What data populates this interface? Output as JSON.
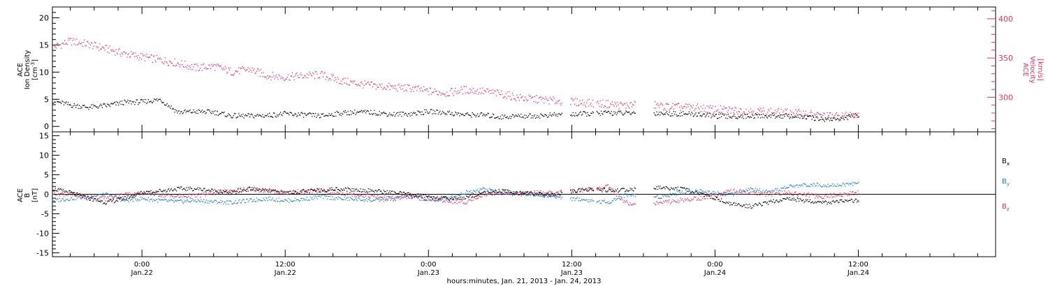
{
  "colors": {
    "black": "#000000",
    "pink": "#e8305e",
    "blue": "#1e7fd6"
  },
  "chart_data": [
    {
      "type": "scatter",
      "panel": "top",
      "ylabel_lines": [
        "ACE",
        "Ion Density",
        "[cm^-3]"
      ],
      "y2label_lines": [
        "ACE",
        "Velocity",
        "[km/s]"
      ],
      "ylim": [
        -1,
        22
      ],
      "y2lim": [
        256,
        415
      ],
      "yticks": [
        0,
        5,
        10,
        15,
        20
      ],
      "yticklabels": [
        "0",
        "5",
        "10",
        "15",
        "20"
      ],
      "y2ticks": [
        300,
        350,
        400
      ],
      "y2ticklabels": [
        "300",
        "350",
        "400"
      ],
      "x_unit": "hours since Jan. 21, 2013 00:00",
      "series": [
        {
          "axis": "left",
          "color": "#000000",
          "x": [
            16.5,
            18,
            19.5,
            21,
            22.5,
            24,
            25.5,
            27,
            28.5,
            30,
            31.5,
            33,
            34.5,
            36,
            37.5,
            39,
            40.5,
            42,
            43.5,
            45,
            46.5,
            48,
            49.5,
            51,
            52.5,
            54,
            55.5,
            57,
            58.5,
            61.5,
            63,
            64.5,
            66,
            67.5,
            69,
            70.5,
            72,
            73.5,
            75,
            76.5,
            78,
            79.5,
            81,
            82.5,
            84
          ],
          "values": [
            4.8,
            4.0,
            3.6,
            3.9,
            4.5,
            4.6,
            5.0,
            2.7,
            2.8,
            2.7,
            2.0,
            2.0,
            2.1,
            2.4,
            2.2,
            2.0,
            2.5,
            2.7,
            2.6,
            2.3,
            2.4,
            2.8,
            2.6,
            2.2,
            2.2,
            1.8,
            2.0,
            2.0,
            2.2,
            2.4,
            2.6,
            2.5,
            2.6,
            2.5,
            2.4,
            2.3,
            2.0,
            1.9,
            2.0,
            2.0,
            2.0,
            1.8,
            1.4,
            1.5,
            2.2
          ]
        },
        {
          "axis": "right",
          "color": "#e8305e",
          "x": [
            16.5,
            18,
            19.5,
            21,
            22.5,
            24,
            25.5,
            27,
            28.5,
            30,
            31.5,
            33,
            34.5,
            36,
            37.5,
            39,
            40.5,
            42,
            43.5,
            45,
            46.5,
            48,
            49.5,
            51,
            52.5,
            54,
            55.5,
            57,
            58.5,
            61.5,
            63,
            64.5,
            66,
            67.5,
            69,
            70.5,
            72,
            73.5,
            75,
            76.5,
            78,
            79.5,
            81,
            82.5,
            84
          ],
          "values": [
            364,
            372,
            368,
            362,
            356,
            352,
            348,
            344,
            338,
            340,
            333,
            336,
            328,
            326,
            328,
            329,
            322,
            318,
            315,
            313,
            312,
            308,
            306,
            310,
            308,
            305,
            300,
            298,
            296,
            293,
            292,
            290,
            293,
            289,
            288,
            287,
            285,
            284,
            283,
            282,
            281,
            280,
            277,
            276,
            280
          ]
        }
      ]
    },
    {
      "type": "scatter",
      "panel": "bottom",
      "ylabel_lines": [
        "ACE",
        "B",
        "[nT]"
      ],
      "ylim": [
        -16,
        16
      ],
      "yticks": [
        -15,
        -10,
        -5,
        0,
        5,
        10,
        15
      ],
      "yticklabels": [
        "-15",
        "-10",
        "-5",
        "0",
        "5",
        "10",
        "15"
      ],
      "zero_line": true,
      "x_unit": "hours since Jan. 21, 2013 00:00",
      "series": [
        {
          "name": "Bx",
          "color": "#000000",
          "x": [
            16.5,
            18,
            19.5,
            21,
            22.5,
            24,
            25.5,
            27,
            28.5,
            30,
            31.5,
            33,
            34.5,
            36,
            37.5,
            39,
            40.5,
            42,
            43.5,
            45,
            46.5,
            48,
            49.5,
            51,
            52.5,
            54,
            55.5,
            57,
            58.5,
            61.5,
            63,
            64.5,
            66,
            67.5,
            69,
            70.5,
            72,
            73.5,
            75,
            76.5,
            78,
            79.5,
            81,
            82.5,
            84
          ],
          "values": [
            1.5,
            0.5,
            -1.0,
            -2.0,
            -1.0,
            0.5,
            1.0,
            1.5,
            1.5,
            1.0,
            0.5,
            1.5,
            1.0,
            0.5,
            0.8,
            1.2,
            1.5,
            1.2,
            1.0,
            0.5,
            0.0,
            -0.5,
            -1.0,
            -0.8,
            0.5,
            1.0,
            0.5,
            0.2,
            0.0,
            1.5,
            1.0,
            1.2,
            1.5,
            1.8,
            1.5,
            0.5,
            -1.0,
            -2.5,
            -3.0,
            -2.0,
            -1.0,
            -1.5,
            -2.0,
            -1.8,
            -1.5
          ]
        },
        {
          "name": "By",
          "color": "#1e7fd6",
          "x": [
            16.5,
            18,
            19.5,
            21,
            22.5,
            24,
            25.5,
            27,
            28.5,
            30,
            31.5,
            33,
            34.5,
            36,
            37.5,
            39,
            40.5,
            42,
            43.5,
            45,
            46.5,
            48,
            49.5,
            51,
            52.5,
            54,
            55.5,
            57,
            58.5,
            61.5,
            63,
            64.5,
            66,
            67.5,
            69,
            70.5,
            72,
            73.5,
            75,
            76.5,
            78,
            79.5,
            81,
            82.5,
            84
          ],
          "values": [
            -1.5,
            -1.0,
            -0.5,
            0.0,
            -1.5,
            -1.0,
            -1.5,
            -1.8,
            -1.5,
            -1.8,
            -2.0,
            -1.5,
            -1.0,
            -1.5,
            -1.2,
            -0.5,
            -1.0,
            -1.2,
            -1.5,
            -1.0,
            -0.5,
            -1.5,
            -1.0,
            0.5,
            1.5,
            0.5,
            0.3,
            0.0,
            -0.5,
            -1.5,
            -2.0,
            0.0,
            -0.5,
            -0.5,
            0.5,
            1.0,
            0.5,
            0.0,
            1.5,
            0.5,
            2.0,
            2.5,
            2.5,
            2.5,
            3.0
          ]
        },
        {
          "name": "Bz",
          "color": "#e8305e",
          "x": [
            16.5,
            18,
            19.5,
            21,
            22.5,
            24,
            25.5,
            27,
            28.5,
            30,
            31.5,
            33,
            34.5,
            36,
            37.5,
            39,
            40.5,
            42,
            43.5,
            45,
            46.5,
            48,
            49.5,
            51,
            52.5,
            54,
            55.5,
            57,
            58.5,
            61.5,
            63,
            64.5,
            66,
            67.5,
            69,
            70.5,
            72,
            73.5,
            75,
            76.5,
            78,
            79.5,
            81,
            82.5,
            84
          ],
          "values": [
            0.5,
            0.0,
            -0.5,
            -1.0,
            0.0,
            0.5,
            0.0,
            -0.5,
            -0.3,
            0.5,
            1.0,
            1.5,
            1.0,
            0.5,
            0.8,
            1.0,
            0.5,
            0.0,
            -0.5,
            -1.0,
            -0.5,
            -1.0,
            -1.5,
            -2.0,
            0.0,
            0.5,
            0.2,
            0.5,
            0.3,
            1.5,
            2.0,
            -2.0,
            -2.5,
            -2.0,
            -1.5,
            -1.0,
            0.0,
            1.0,
            0.5,
            0.0,
            0.5,
            0.0,
            -0.5,
            0.0,
            0.5
          ]
        }
      ]
    }
  ],
  "xaxis": {
    "range_hours": [
      16.5,
      95.5
    ],
    "major_ticks": [
      {
        "hours": 24,
        "time": "0:00",
        "date": "Jan.22"
      },
      {
        "hours": 36,
        "time": "12:00",
        "date": "Jan.22"
      },
      {
        "hours": 48,
        "time": "0:00",
        "date": "Jan.23"
      },
      {
        "hours": 60,
        "time": "12:00",
        "date": "Jan.23"
      },
      {
        "hours": 72,
        "time": "0:00",
        "date": "Jan.24"
      },
      {
        "hours": 84,
        "time": "12:00",
        "date": "Jan.24"
      }
    ],
    "minor_step_hours": 2,
    "label": "hours:minutes, Jan. 21, 2013 - Jan. 24, 2013"
  },
  "legend": [
    {
      "name": "Bx",
      "base": "B",
      "sub": "x",
      "color": "#000000"
    },
    {
      "name": "By",
      "base": "B",
      "sub": "y",
      "color": "#1e7fd6"
    },
    {
      "name": "Bz",
      "base": "B",
      "sub": "z",
      "color": "#e8305e"
    }
  ]
}
